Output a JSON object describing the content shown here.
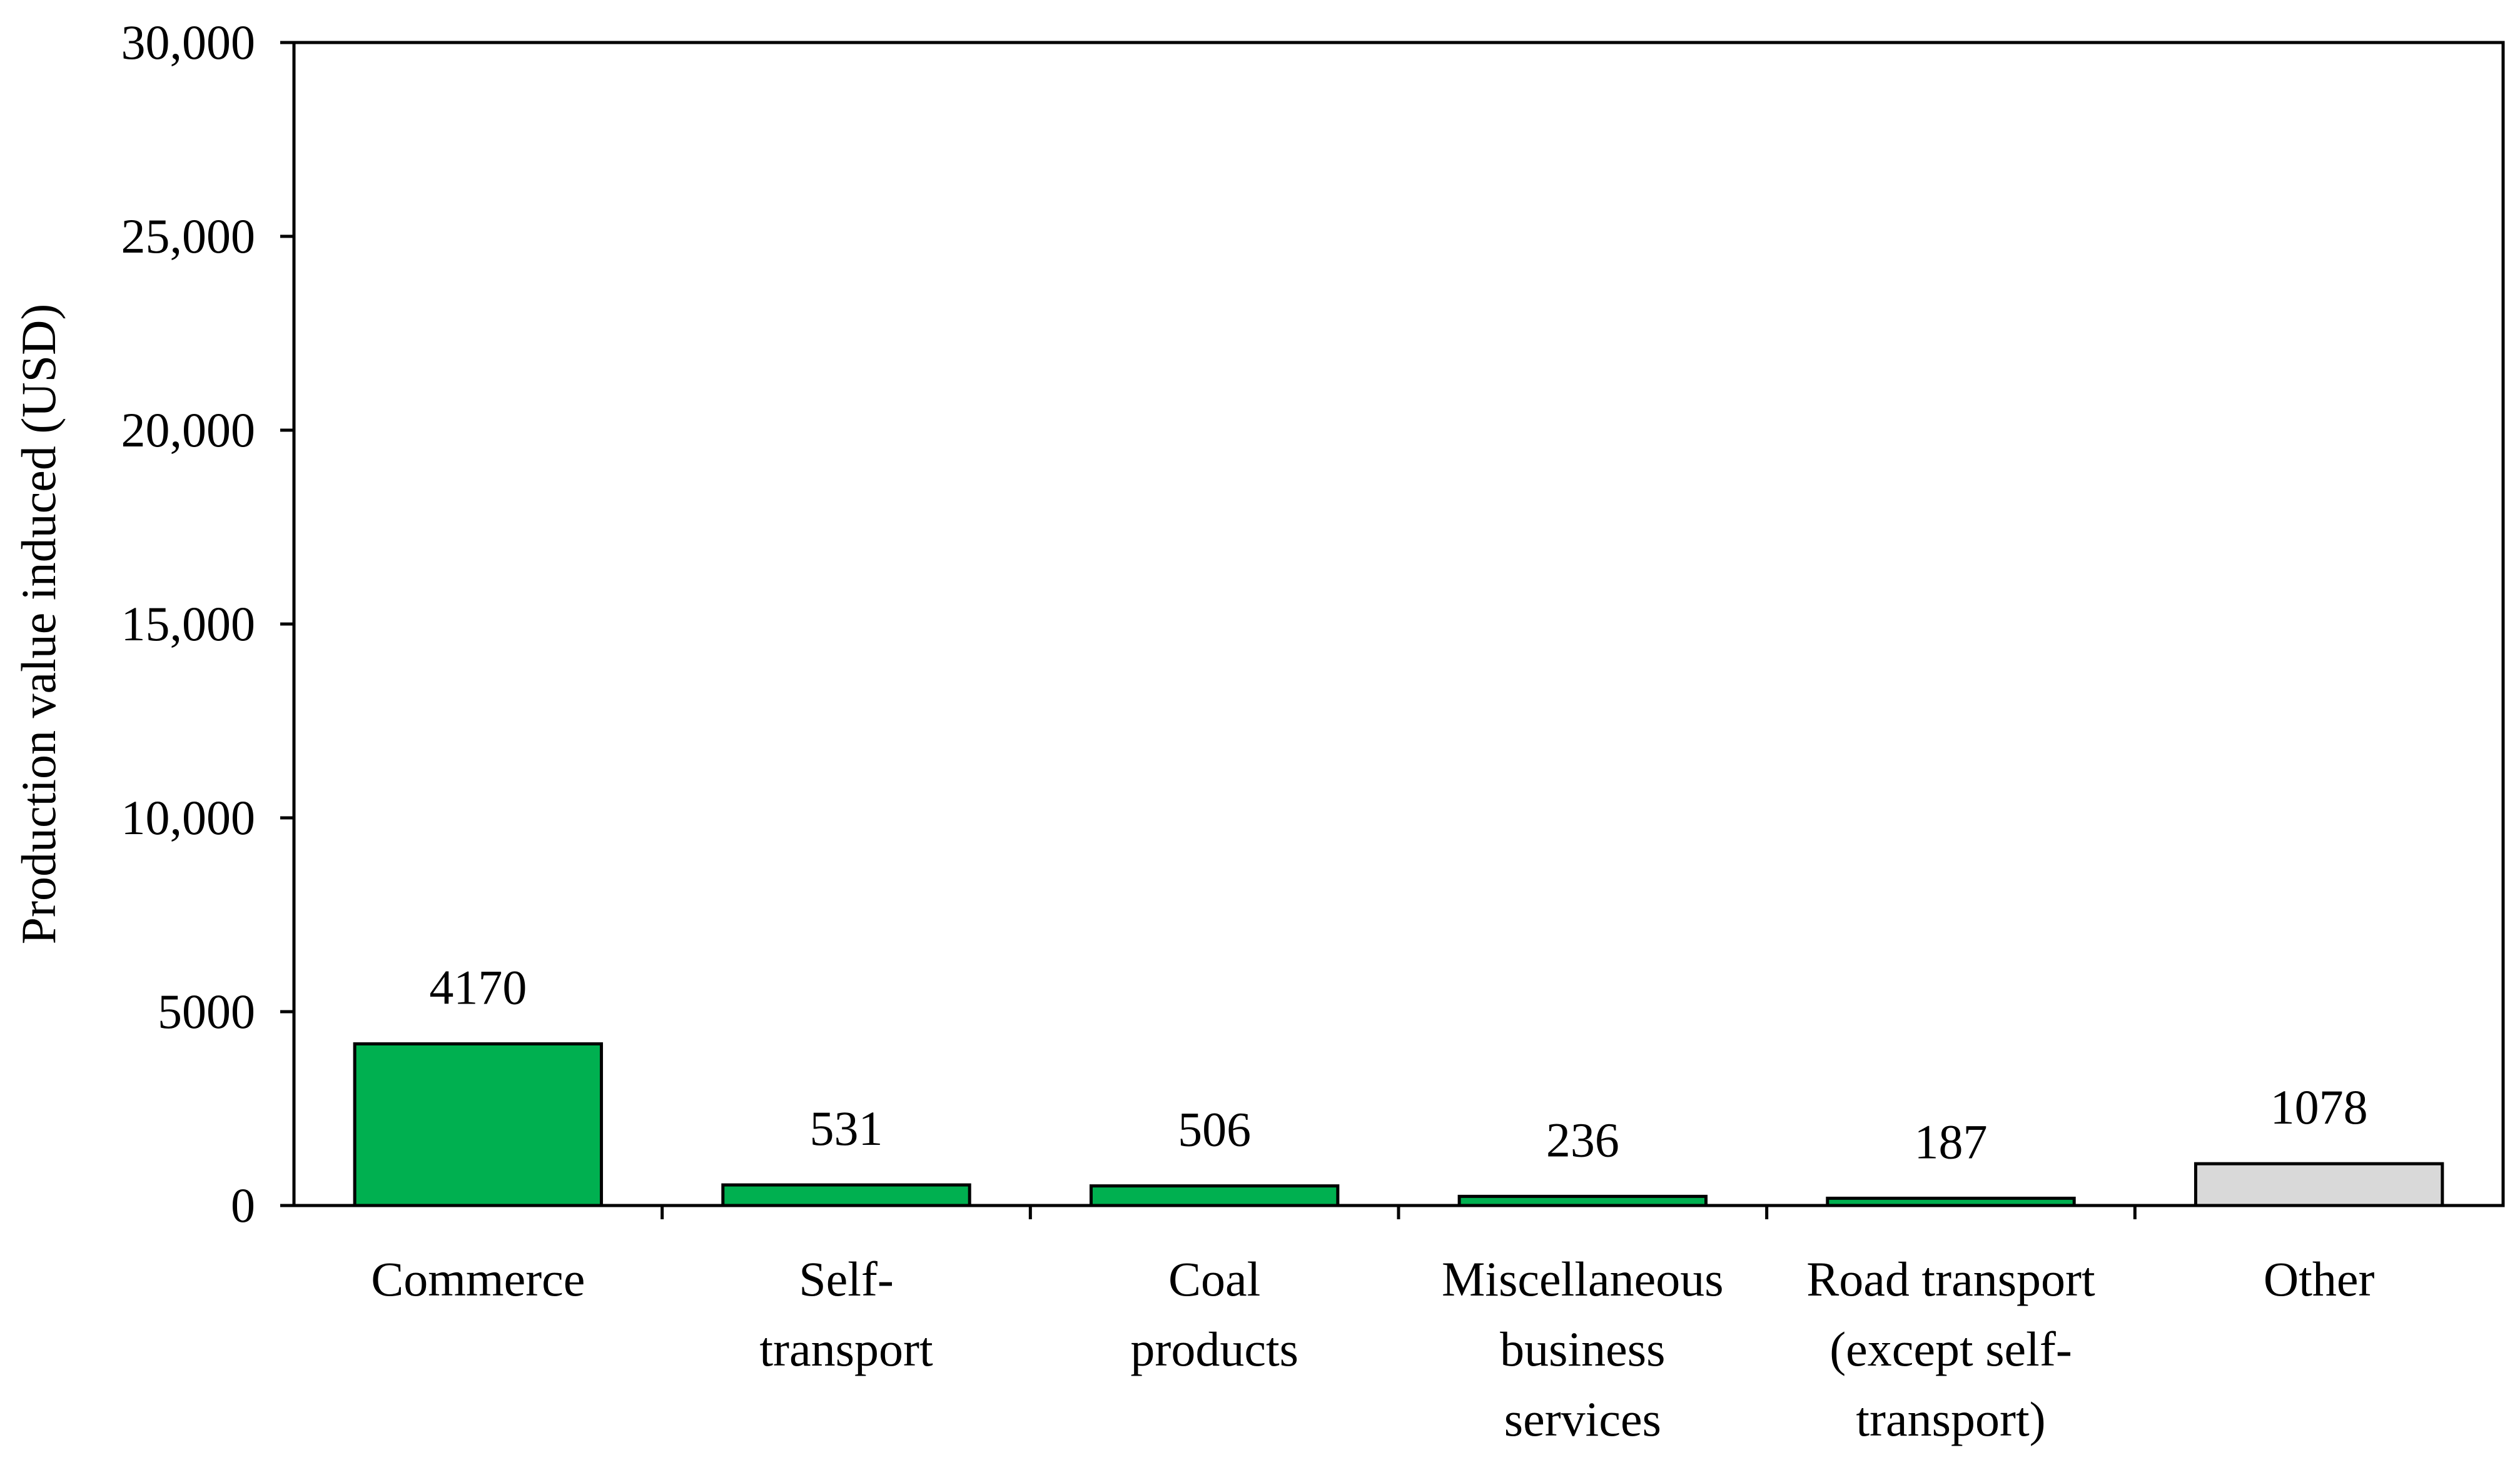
{
  "chart_data": {
    "type": "bar",
    "title": "",
    "xlabel": "",
    "ylabel": "Production value induced (USD)",
    "ylim": [
      0,
      30000
    ],
    "yticks": [
      0,
      5000,
      10000,
      15000,
      20000,
      25000,
      30000
    ],
    "ytick_labels": [
      "0",
      "5000",
      "10,000",
      "15,000",
      "20,000",
      "25,000",
      "30,000"
    ],
    "grid": false,
    "legend": "none",
    "categories": [
      [
        "Commerce"
      ],
      [
        "Self-",
        "transport"
      ],
      [
        "Coal",
        "products"
      ],
      [
        "Miscellaneous",
        "business",
        "services"
      ],
      [
        "Road transport",
        "(except self-",
        "transport)"
      ],
      [
        "Other"
      ]
    ],
    "values": [
      4170,
      531,
      506,
      236,
      187,
      1078
    ],
    "value_labels": [
      "4170",
      "531",
      "506",
      "236",
      "187",
      "1078"
    ],
    "bar_colors": [
      "#00b050",
      "#00b050",
      "#00b050",
      "#00b050",
      "#00b050",
      "#d9d9d9"
    ]
  }
}
